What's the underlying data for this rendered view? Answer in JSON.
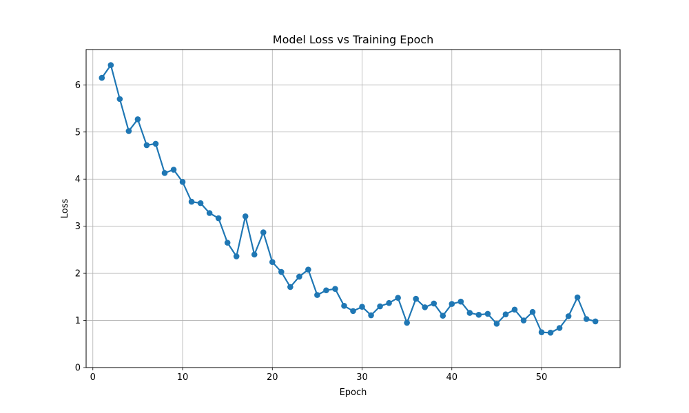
{
  "chart_data": {
    "type": "line",
    "title": "Model Loss vs Training Epoch",
    "xlabel": "Epoch",
    "ylabel": "Loss",
    "xlim": [
      -0.75,
      58.75
    ],
    "ylim": [
      0,
      6.75
    ],
    "xticks": [
      0,
      10,
      20,
      30,
      40,
      50
    ],
    "yticks": [
      0,
      1,
      2,
      3,
      4,
      5,
      6
    ],
    "grid": true,
    "series": [
      {
        "color": "#1f77b4",
        "x": [
          1,
          2,
          3,
          4,
          5,
          6,
          7,
          8,
          9,
          10,
          11,
          12,
          13,
          14,
          15,
          16,
          17,
          18,
          19,
          20,
          21,
          22,
          23,
          24,
          25,
          26,
          27,
          28,
          29,
          30,
          31,
          32,
          33,
          34,
          35,
          36,
          37,
          38,
          39,
          40,
          41,
          42,
          43,
          44,
          45,
          46,
          47,
          48,
          49,
          50,
          51,
          52,
          53,
          54,
          55,
          56
        ],
        "y": [
          6.15,
          6.42,
          5.7,
          5.02,
          5.27,
          4.72,
          4.75,
          4.13,
          4.2,
          3.94,
          3.52,
          3.49,
          3.28,
          3.17,
          2.65,
          2.36,
          3.21,
          2.4,
          2.87,
          2.24,
          2.03,
          1.71,
          1.93,
          2.08,
          1.54,
          1.64,
          1.67,
          1.31,
          1.2,
          1.29,
          1.11,
          1.3,
          1.37,
          1.48,
          0.95,
          1.46,
          1.28,
          1.36,
          1.1,
          1.35,
          1.4,
          1.16,
          1.12,
          1.14,
          0.93,
          1.13,
          1.23,
          1.0,
          1.18,
          0.75,
          0.74,
          0.84,
          1.09,
          1.49,
          1.03,
          0.98
        ]
      }
    ]
  }
}
